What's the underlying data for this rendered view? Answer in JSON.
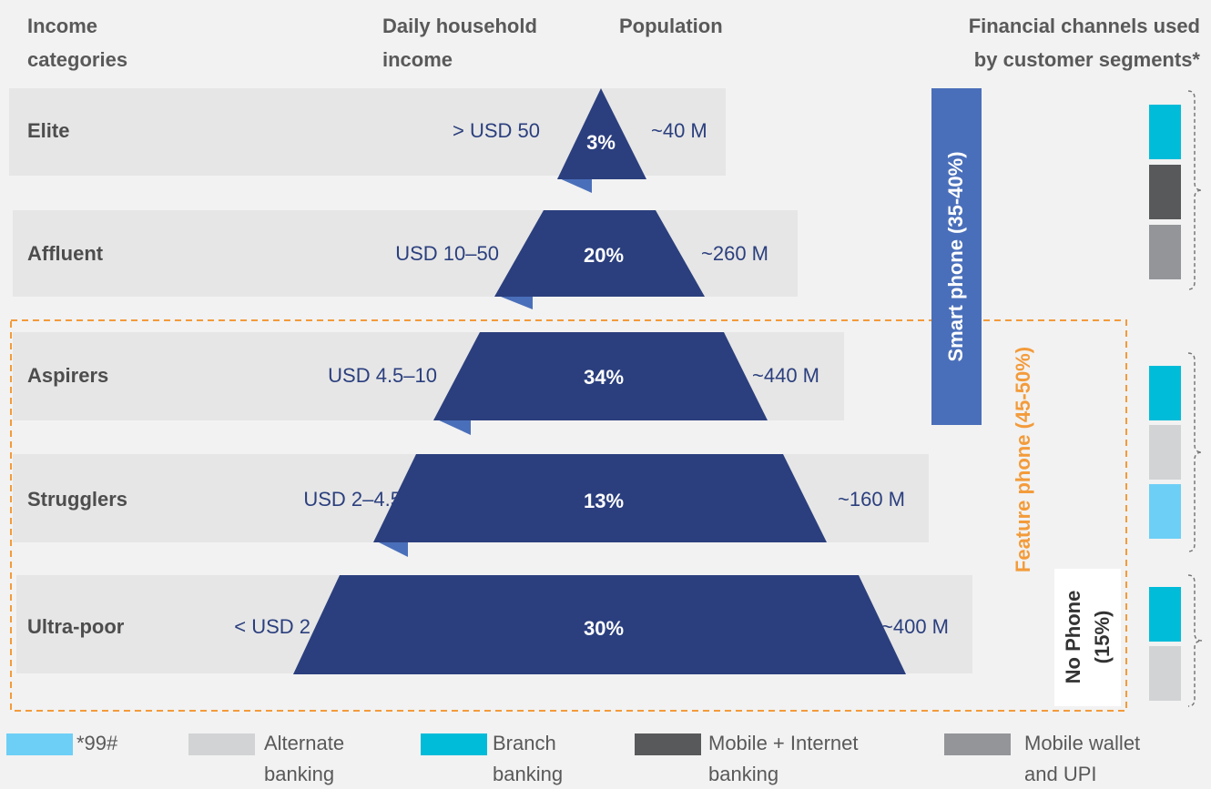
{
  "headers": {
    "income_categories": [
      "Income",
      "categories"
    ],
    "daily_income": [
      "Daily household",
      "income"
    ],
    "population": [
      "Population"
    ],
    "channels": [
      "Financial channels used",
      "by customer segments*"
    ]
  },
  "rows": [
    {
      "name": "Elite",
      "income": "> USD 50",
      "percent": "3%",
      "population": "~40 M"
    },
    {
      "name": "Affluent",
      "income": "USD 10–50",
      "percent": "20%",
      "population": "~260 M"
    },
    {
      "name": "Aspirers",
      "income": "USD 4.5–10",
      "percent": "34%",
      "population": "~440 M"
    },
    {
      "name": "Strugglers",
      "income": "USD 2–4.5",
      "percent": "13%",
      "population": "~160 M"
    },
    {
      "name": "Ultra-poor",
      "income": "< USD 2",
      "percent": "30%",
      "population": "~400 M"
    }
  ],
  "segments": {
    "smart_phone": "Smart phone (35-40%)",
    "feature_phone": "Feature phone (45-50%)",
    "no_phone": [
      "No Phone",
      "(15%)"
    ]
  },
  "legend": [
    {
      "lines": [
        "*99#"
      ]
    },
    {
      "lines": [
        "Alternate",
        "banking"
      ]
    },
    {
      "lines": [
        "Branch",
        "banking"
      ]
    },
    {
      "lines": [
        "Mobile + Internet",
        "banking"
      ]
    },
    {
      "lines": [
        "Mobile wallet",
        "and UPI"
      ]
    }
  ]
}
